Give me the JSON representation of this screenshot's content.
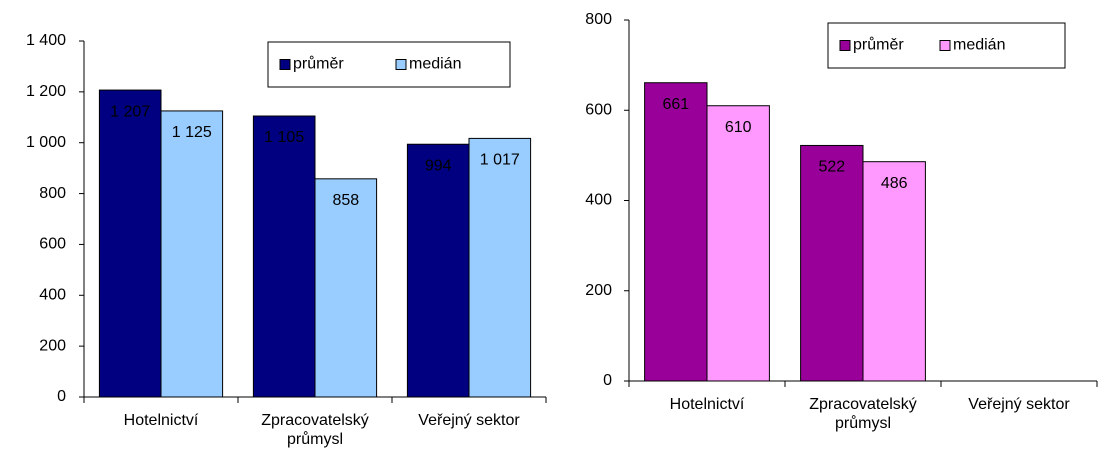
{
  "chart_data": [
    {
      "type": "bar",
      "categories": [
        "Hotelnictví",
        "Zpracovatelský průmysl",
        "Veřejný sektor"
      ],
      "series": [
        {
          "name": "průměr",
          "color": "#000080",
          "values": [
            1207,
            1105,
            994
          ],
          "value_labels": [
            "1 207",
            "1 105",
            "994"
          ]
        },
        {
          "name": "medián",
          "color": "#99ccff",
          "values": [
            1125,
            858,
            1017
          ],
          "value_labels": [
            "1 125",
            "858",
            "1 017"
          ]
        }
      ],
      "ylim": [
        0,
        1400
      ],
      "yticks": [
        0,
        200,
        400,
        600,
        800,
        {
          "value": 1000,
          "label": "1 000"
        },
        {
          "value": 1200,
          "label": "1 200"
        },
        {
          "value": 1400,
          "label": "1 400"
        }
      ]
    },
    {
      "type": "bar",
      "categories": [
        "Hotelnictví",
        "Zpracovatelský průmysl",
        "Veřejný sektor"
      ],
      "series": [
        {
          "name": "průměr",
          "color": "#990099",
          "values": [
            661,
            522,
            null
          ]
        },
        {
          "name": "medián",
          "color": "#ff99ff",
          "values": [
            610,
            486,
            null
          ]
        }
      ],
      "ylim": [
        0,
        800
      ],
      "yticks": [
        0,
        200,
        400,
        600,
        800
      ]
    }
  ]
}
